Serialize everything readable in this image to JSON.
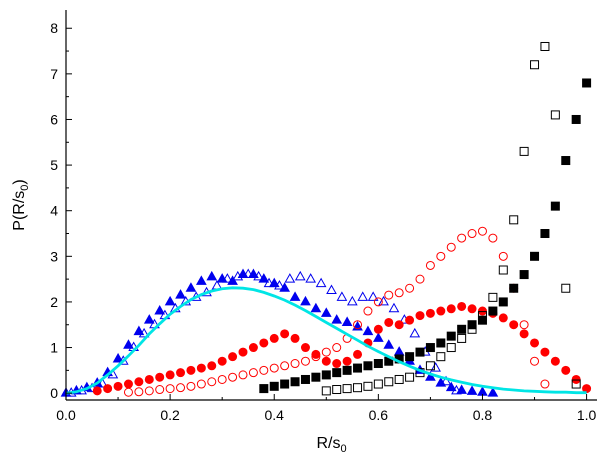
{
  "chart_data": {
    "type": "scatter",
    "title": "",
    "xlabel": {
      "main": "R/s",
      "sub": "0"
    },
    "ylabel": {
      "main": "P(R/s",
      "sub": "0",
      "close": ")"
    },
    "xlim": [
      0,
      1.02
    ],
    "ylim": [
      -0.15,
      8.4
    ],
    "xticks": [
      0.0,
      0.2,
      0.4,
      0.6,
      0.8,
      1.0
    ],
    "xtick_labels": [
      "0.0",
      "0.2",
      "0.4",
      "0.6",
      "0.8",
      "1.0"
    ],
    "yticks": [
      0,
      1,
      2,
      3,
      4,
      5,
      6,
      7,
      8
    ],
    "ytick_labels": [
      "0",
      "1",
      "2",
      "3",
      "4",
      "5",
      "6",
      "7",
      "8"
    ],
    "grid": false,
    "legend": "none",
    "series": [
      {
        "marker": "triangle-filled",
        "color": "#0000ee",
        "x": [
          0.0,
          0.02,
          0.04,
          0.06,
          0.08,
          0.1,
          0.12,
          0.14,
          0.16,
          0.18,
          0.2,
          0.22,
          0.24,
          0.26,
          0.28,
          0.3,
          0.32,
          0.34,
          0.36,
          0.38,
          0.4,
          0.42,
          0.44,
          0.46,
          0.48,
          0.5,
          0.52,
          0.54,
          0.56,
          0.58,
          0.6,
          0.62,
          0.64,
          0.66,
          0.68,
          0.7,
          0.72,
          0.74,
          0.76,
          0.78,
          0.8,
          0.82
        ],
        "y": [
          0.0,
          0.05,
          0.12,
          0.22,
          0.45,
          0.75,
          1.05,
          1.35,
          1.6,
          1.8,
          2.0,
          2.15,
          2.3,
          2.45,
          2.55,
          2.5,
          2.45,
          2.6,
          2.6,
          2.5,
          2.4,
          2.3,
          2.1,
          2.0,
          1.85,
          1.75,
          1.6,
          1.55,
          1.45,
          1.35,
          1.2,
          1.05,
          0.9,
          0.7,
          0.5,
          0.35,
          0.22,
          0.12,
          0.06,
          0.04,
          0.02,
          0.0
        ]
      },
      {
        "marker": "triangle-open",
        "color": "#0000ee",
        "x": [
          0.01,
          0.03,
          0.05,
          0.07,
          0.09,
          0.11,
          0.13,
          0.15,
          0.17,
          0.19,
          0.21,
          0.23,
          0.25,
          0.27,
          0.29,
          0.31,
          0.33,
          0.35,
          0.37,
          0.39,
          0.41,
          0.43,
          0.45,
          0.47,
          0.49,
          0.51,
          0.53,
          0.55,
          0.57,
          0.59,
          0.61,
          0.63,
          0.65,
          0.67,
          0.69,
          0.71,
          0.73,
          0.75
        ],
        "y": [
          0.0,
          0.05,
          0.1,
          0.2,
          0.4,
          0.7,
          1.0,
          1.3,
          1.5,
          1.7,
          1.85,
          2.0,
          2.1,
          2.2,
          2.35,
          2.5,
          2.55,
          2.6,
          2.55,
          2.4,
          2.35,
          2.5,
          2.55,
          2.5,
          2.4,
          2.25,
          2.1,
          2.0,
          2.1,
          2.1,
          2.0,
          1.85,
          1.6,
          1.3,
          0.9,
          0.55,
          0.25,
          0.05
        ]
      },
      {
        "marker": "circle-filled",
        "color": "#ff0000",
        "x": [
          0.06,
          0.08,
          0.1,
          0.12,
          0.14,
          0.16,
          0.18,
          0.2,
          0.22,
          0.24,
          0.26,
          0.28,
          0.3,
          0.32,
          0.34,
          0.36,
          0.38,
          0.4,
          0.42,
          0.44,
          0.46,
          0.48,
          0.5,
          0.52,
          0.54,
          0.56,
          0.58,
          0.6,
          0.62,
          0.64,
          0.66,
          0.68,
          0.7,
          0.72,
          0.74,
          0.76,
          0.78,
          0.8,
          0.82,
          0.84,
          0.86,
          0.88,
          0.9,
          0.92,
          0.94,
          0.96,
          0.98,
          1.0
        ],
        "y": [
          0.05,
          0.1,
          0.15,
          0.2,
          0.25,
          0.3,
          0.35,
          0.4,
          0.45,
          0.5,
          0.55,
          0.6,
          0.7,
          0.8,
          0.9,
          1.0,
          1.1,
          1.2,
          1.3,
          1.2,
          1.0,
          0.85,
          0.7,
          0.65,
          0.7,
          0.85,
          1.1,
          1.4,
          1.55,
          1.5,
          1.6,
          1.7,
          1.75,
          1.8,
          1.85,
          1.9,
          1.85,
          1.8,
          1.75,
          1.65,
          1.5,
          1.3,
          1.1,
          0.9,
          0.7,
          0.5,
          0.3,
          0.1
        ]
      },
      {
        "marker": "circle-open",
        "color": "#ff0000",
        "x": [
          0.12,
          0.14,
          0.16,
          0.18,
          0.2,
          0.22,
          0.24,
          0.26,
          0.28,
          0.3,
          0.32,
          0.34,
          0.36,
          0.38,
          0.4,
          0.42,
          0.44,
          0.46,
          0.48,
          0.5,
          0.52,
          0.54,
          0.56,
          0.58,
          0.6,
          0.62,
          0.64,
          0.66,
          0.68,
          0.7,
          0.72,
          0.74,
          0.76,
          0.78,
          0.8,
          0.82,
          0.84,
          0.86,
          0.88,
          0.9,
          0.92
        ],
        "y": [
          0.02,
          0.03,
          0.05,
          0.08,
          0.1,
          0.12,
          0.15,
          0.2,
          0.25,
          0.3,
          0.35,
          0.4,
          0.45,
          0.5,
          0.55,
          0.6,
          0.65,
          0.7,
          0.8,
          0.9,
          1.0,
          1.2,
          1.5,
          1.8,
          2.0,
          2.15,
          2.2,
          2.3,
          2.5,
          2.8,
          3.0,
          3.2,
          3.4,
          3.5,
          3.55,
          3.4,
          3.0,
          2.3,
          1.5,
          0.7,
          0.2
        ]
      },
      {
        "marker": "square-filled",
        "color": "#000000",
        "x": [
          0.38,
          0.4,
          0.42,
          0.44,
          0.46,
          0.48,
          0.5,
          0.52,
          0.54,
          0.56,
          0.58,
          0.6,
          0.62,
          0.64,
          0.66,
          0.68,
          0.7,
          0.72,
          0.74,
          0.76,
          0.78,
          0.8,
          0.82,
          0.84,
          0.86,
          0.88,
          0.9,
          0.92,
          0.94,
          0.96,
          0.98,
          1.0
        ],
        "y": [
          0.1,
          0.15,
          0.2,
          0.25,
          0.3,
          0.35,
          0.4,
          0.45,
          0.5,
          0.55,
          0.6,
          0.65,
          0.7,
          0.75,
          0.8,
          0.9,
          1.0,
          1.1,
          1.25,
          1.4,
          1.5,
          1.6,
          1.8,
          2.0,
          2.3,
          2.6,
          3.0,
          3.5,
          4.1,
          5.1,
          6.0,
          6.8
        ]
      },
      {
        "marker": "square-open",
        "color": "#000000",
        "x": [
          0.5,
          0.52,
          0.54,
          0.56,
          0.58,
          0.6,
          0.62,
          0.64,
          0.66,
          0.68,
          0.7,
          0.72,
          0.74,
          0.76,
          0.78,
          0.8,
          0.82,
          0.84,
          0.86,
          0.88,
          0.9,
          0.92,
          0.94,
          0.96,
          0.98
        ],
        "y": [
          0.05,
          0.08,
          0.1,
          0.12,
          0.15,
          0.2,
          0.25,
          0.3,
          0.35,
          0.45,
          0.6,
          0.8,
          1.0,
          1.2,
          1.4,
          1.7,
          2.1,
          2.7,
          3.8,
          5.3,
          7.2,
          7.6,
          6.1,
          2.3,
          0.2
        ]
      },
      {
        "marker": "line",
        "color": "#00e5e5",
        "x": [
          0.0,
          0.02,
          0.04,
          0.06,
          0.08,
          0.1,
          0.12,
          0.14,
          0.16,
          0.18,
          0.2,
          0.22,
          0.24,
          0.26,
          0.28,
          0.3,
          0.32,
          0.34,
          0.36,
          0.38,
          0.4,
          0.42,
          0.44,
          0.46,
          0.48,
          0.5,
          0.52,
          0.54,
          0.56,
          0.58,
          0.6,
          0.62,
          0.64,
          0.66,
          0.68,
          0.7,
          0.72,
          0.74,
          0.76,
          0.78,
          0.8,
          0.82,
          0.84,
          0.86,
          0.88,
          0.9,
          0.92,
          0.94,
          0.96,
          0.98,
          1.0
        ],
        "y": [
          0.0,
          0.03,
          0.1,
          0.22,
          0.4,
          0.6,
          0.82,
          1.05,
          1.3,
          1.52,
          1.73,
          1.9,
          2.05,
          2.16,
          2.24,
          2.29,
          2.31,
          2.3,
          2.27,
          2.21,
          2.13,
          2.04,
          1.93,
          1.81,
          1.68,
          1.55,
          1.42,
          1.29,
          1.16,
          1.03,
          0.91,
          0.8,
          0.69,
          0.59,
          0.5,
          0.42,
          0.35,
          0.29,
          0.24,
          0.19,
          0.15,
          0.12,
          0.09,
          0.07,
          0.05,
          0.04,
          0.03,
          0.02,
          0.02,
          0.01,
          0.01
        ]
      }
    ]
  }
}
